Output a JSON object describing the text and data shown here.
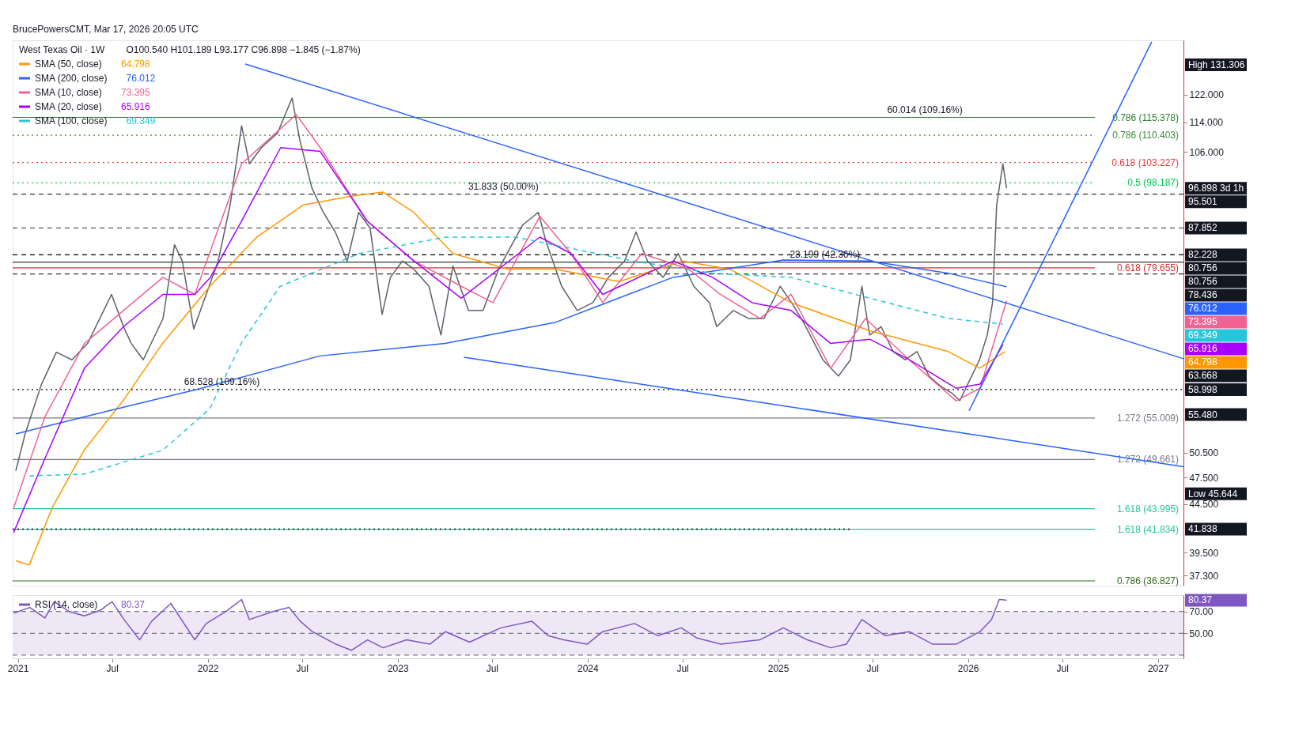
{
  "chart_data": [
    {
      "type": "line",
      "title": "West Texas Oil · 1W",
      "subtitle": "O100.540 H101.189 L93.177 C96.898 −1.845 (−1.87%)",
      "log": "y",
      "legend": "top left",
      "tick_labels": "y",
      "xlim": [
        "2020-12-22",
        "2027-02-19"
      ],
      "xticks": [
        {
          "value": "2021-01-01",
          "label": "2021"
        },
        {
          "value": "2021-07-01",
          "label": "Jul"
        },
        {
          "value": "2022-01-01",
          "label": "2022"
        },
        {
          "value": "2022-07-01",
          "label": "Jul"
        },
        {
          "value": "2023-01-01",
          "label": "2023"
        },
        {
          "value": "2023-07-01",
          "label": "Jul"
        },
        {
          "value": "2024-01-01",
          "label": "2024"
        },
        {
          "value": "2024-07-01",
          "label": "Jul"
        },
        {
          "value": "2025-01-01",
          "label": "2025"
        },
        {
          "value": "2025-07-01",
          "label": "Jul"
        },
        {
          "value": "2026-01-01",
          "label": "2026"
        },
        {
          "value": "2026-07-01",
          "label": "Jul"
        },
        {
          "value": "2027-01-01",
          "label": "2027"
        }
      ],
      "ylim": [
        36.4,
        139.5
      ],
      "yticks": [
        {
          "value": 122,
          "label": "122.000"
        },
        {
          "value": 114,
          "label": "114.000"
        },
        {
          "value": 106,
          "label": "106.000"
        },
        {
          "value": 50.5,
          "label": "50.500"
        },
        {
          "value": 47.5,
          "label": "47.500"
        },
        {
          "value": 44.5,
          "label": "44.500"
        },
        {
          "value": 39.5,
          "label": "39.500"
        },
        {
          "value": 37.3,
          "label": "37.300"
        }
      ],
      "series": [
        {
          "color": "#5d606b",
          "x": [
            "2020-12-28",
            "2021-01-15",
            "2021-02-15",
            "2021-03-16",
            "2021-04-15",
            "2021-05-15",
            "2021-06-30",
            "2021-07-23",
            "2021-08-07",
            "2021-08-30",
            "2021-10-07",
            "2021-10-29",
            "2021-11-13",
            "2021-12-05",
            "2021-12-29",
            "2022-01-21",
            "2022-02-13",
            "2022-03-07",
            "2022-03-22",
            "2022-04-14",
            "2022-05-15",
            "2022-06-12",
            "2022-06-27",
            "2022-07-20",
            "2022-08-11",
            "2022-09-03",
            "2022-09-26",
            "2022-10-18",
            "2022-11-09",
            "2022-12-02",
            "2022-12-18",
            "2023-01-10",
            "2023-02-01",
            "2023-03-02",
            "2023-03-25",
            "2023-04-17",
            "2023-05-17",
            "2023-06-14",
            "2023-07-14",
            "2023-08-29",
            "2023-09-28",
            "2023-10-13",
            "2023-11-12",
            "2023-12-12",
            "2024-01-11",
            "2024-02-10",
            "2024-03-12",
            "2024-04-03",
            "2024-04-25",
            "2024-05-25",
            "2024-06-23",
            "2024-07-23",
            "2024-08-22",
            "2024-09-05",
            "2024-10-07",
            "2024-11-05",
            "2024-12-05",
            "2025-01-05",
            "2025-01-27",
            "2025-02-19",
            "2025-03-28",
            "2025-04-27",
            "2025-05-20",
            "2025-06-11",
            "2025-06-26",
            "2025-07-18",
            "2025-08-10",
            "2025-09-02",
            "2025-09-25",
            "2025-10-18",
            "2025-11-09",
            "2025-12-01",
            "2025-12-16",
            "2026-01-08",
            "2026-01-23",
            "2026-02-07",
            "2026-02-17",
            "2026-02-25",
            "2026-03-09",
            "2026-03-16"
          ],
          "values": [
            48.3,
            52.9,
            59.7,
            64.7,
            63.5,
            66.1,
            74.6,
            68.9,
            66.1,
            63.5,
            70.3,
            84.3,
            81.0,
            68.5,
            74.6,
            81.0,
            93.0,
            113.0,
            102.9,
            107.1,
            111.0,
            121.0,
            109.0,
            97.0,
            91.3,
            87.0,
            81.0,
            91.3,
            87.8,
            71.0,
            77.8,
            81.0,
            79.4,
            76.1,
            67.5,
            80.0,
            71.7,
            71.7,
            79.4,
            88.5,
            91.3,
            85.0,
            76.1,
            71.7,
            73.1,
            77.8,
            81.0,
            87.0,
            81.0,
            77.8,
            82.5,
            76.1,
            73.1,
            68.9,
            71.7,
            70.3,
            70.3,
            76.1,
            73.1,
            69.6,
            63.5,
            61.0,
            63.5,
            76.1,
            67.5,
            68.9,
            64.8,
            63.5,
            64.8,
            61.0,
            59.5,
            58.5,
            57.4,
            61.0,
            63.5,
            67.5,
            73.1,
            93.0,
            102.9,
            96.898
          ]
        },
        {
          "name": "SMA (50, close)",
          "color": "#ff9800",
          "x": [
            "2020-12-28",
            "2021-01-23",
            "2021-03-08",
            "2021-05-08",
            "2021-07-22",
            "2021-10-06",
            "2022-01-05",
            "2022-04-05",
            "2022-07-04",
            "2022-10-03",
            "2022-12-03",
            "2023-02-01",
            "2023-04-17",
            "2023-08-01",
            "2023-10-30",
            "2024-03-01",
            "2024-07-01",
            "2024-09-30",
            "2025-01-26",
            "2025-06-26",
            "2025-11-24",
            "2026-01-23",
            "2026-03-13"
          ],
          "values": [
            38.7,
            38.3,
            44.1,
            50.8,
            57.4,
            66.1,
            76.1,
            85.9,
            93.0,
            95.0,
            96.0,
            91.3,
            82.5,
            79.4,
            79.4,
            77.0,
            81.0,
            79.4,
            73.1,
            68.2,
            64.8,
            62.2,
            64.798
          ]
        },
        {
          "name": "SMA (200, close)",
          "color": "#2962ff",
          "x": [
            "2020-12-28",
            "2021-06-08",
            "2021-12-20",
            "2022-08-04",
            "2023-04-02",
            "2023-10-30",
            "2024-06-13",
            "2025-01-11",
            "2025-06-26",
            "2025-11-24",
            "2026-03-16"
          ],
          "values": [
            52.9,
            55.7,
            59.2,
            64.1,
            66.1,
            69.6,
            77.8,
            81.2,
            81.0,
            78.6,
            76.012
          ]
        },
        {
          "name": "SMA (10, close)",
          "color": "#f06292",
          "x": [
            "2020-12-24",
            "2021-02-22",
            "2021-05-09",
            "2021-07-23",
            "2021-10-07",
            "2021-12-07",
            "2022-03-07",
            "2022-06-20",
            "2022-08-05",
            "2022-11-03",
            "2023-02-01",
            "2023-05-03",
            "2023-07-03",
            "2023-10-01",
            "2023-11-30",
            "2024-01-30",
            "2024-04-14",
            "2024-07-13",
            "2024-09-12",
            "2024-11-27",
            "2025-01-26",
            "2025-04-12",
            "2025-06-18",
            "2025-09-10",
            "2025-12-09",
            "2026-01-24",
            "2026-03-16"
          ],
          "values": [
            44.1,
            55.2,
            66.1,
            71.7,
            77.8,
            74.6,
            102.9,
            116.2,
            107.1,
            89.4,
            81.0,
            76.1,
            73.1,
            90.4,
            82.5,
            73.1,
            82.5,
            79.4,
            74.6,
            70.3,
            74.6,
            62.2,
            70.3,
            63.5,
            57.4,
            59.2,
            73.395
          ]
        },
        {
          "name": "SMA (20, close)",
          "color": "#aa00ff",
          "x": [
            "2020-12-24",
            "2021-02-22",
            "2021-05-09",
            "2021-07-23",
            "2021-10-07",
            "2021-12-07",
            "2022-01-06",
            "2022-03-07",
            "2022-05-21",
            "2022-08-05",
            "2022-11-03",
            "2023-02-01",
            "2023-05-03",
            "2023-10-01",
            "2023-11-30",
            "2024-01-30",
            "2024-06-14",
            "2024-08-28",
            "2024-11-12",
            "2025-01-26",
            "2025-04-12",
            "2025-06-26",
            "2025-09-10",
            "2025-12-09",
            "2026-01-24",
            "2026-03-09"
          ],
          "values": [
            41.5,
            49.8,
            62.2,
            68.9,
            74.6,
            74.6,
            77.8,
            89.4,
            107.1,
            106.1,
            89.4,
            81.0,
            73.9,
            85.9,
            82.5,
            74.6,
            81.0,
            77.8,
            73.1,
            71.7,
            66.1,
            66.8,
            63.5,
            59.2,
            59.8,
            65.916
          ]
        },
        {
          "name": "SMA (100, close)",
          "color": "#26c6da",
          "line_style": "dashed",
          "x": [
            "2021-01-23",
            "2021-05-08",
            "2021-10-06",
            "2022-01-05",
            "2022-03-06",
            "2022-05-20",
            "2022-10-19",
            "2023-04-02",
            "2023-08-16",
            "2024-03-28",
            "2024-08-27",
            "2025-01-26",
            "2025-06-26",
            "2025-11-24",
            "2026-03-09"
          ],
          "values": [
            47.7,
            47.9,
            50.8,
            56.3,
            66.1,
            76.1,
            82.5,
            85.9,
            85.9,
            81.0,
            78.6,
            77.8,
            73.9,
            70.3,
            69.349
          ]
        },
        {
          "color": "#000000",
          "line_style": "dotted",
          "x": [
            "2020-12-22",
            "2025-05-20"
          ],
          "values": [
            41.838,
            41.838
          ]
        },
        {
          "color": "#2962ff",
          "x": [
            "2022-03-14",
            "2027-02-19"
          ],
          "values": [
            131.6,
            63.668
          ]
        },
        {
          "color": "#2962ff",
          "x": [
            "2023-05-08",
            "2027-02-19"
          ],
          "values": [
            63.9,
            48.8
          ]
        },
        {
          "color": "#2962ff",
          "x": [
            "2026-01-03",
            "2026-12-20"
          ],
          "values": [
            56.0,
            139.0
          ]
        }
      ],
      "ref_lines": [
        {
          "axis": "y",
          "value": 115.378,
          "label": "0.786 (115.378)",
          "color": "#2e7d32",
          "line_style": "solid"
        },
        {
          "axis": "y",
          "value": 110.403,
          "label": "0.786 (110.403)",
          "color": "#388e3c",
          "line_style": "dotted"
        },
        {
          "axis": "y",
          "value": 103.227,
          "label": "0.618 (103.227)",
          "color": "#e53935",
          "line_style": "dotted"
        },
        {
          "axis": "y",
          "value": 98.187,
          "label": "0.5 (98.187)",
          "color": "#00c853",
          "line_style": "dotted"
        },
        {
          "axis": "y",
          "value": 95.501,
          "color": "#333333",
          "line_style": "dashed"
        },
        {
          "axis": "y",
          "value": 87.852,
          "color": "#333333",
          "line_style": "dashed"
        },
        {
          "axis": "y",
          "value": 82.228,
          "color": "#000000",
          "line_style": "dashed"
        },
        {
          "axis": "y",
          "value": 80.756,
          "color": "#000000",
          "line_style": "solid"
        },
        {
          "axis": "y",
          "value": 79.655,
          "label": "0.618 (79.655)",
          "color": "#d32f2f",
          "line_style": "solid"
        },
        {
          "axis": "y",
          "value": 78.436,
          "color": "#333333",
          "line_style": "dashed"
        },
        {
          "axis": "y",
          "value": 58.998,
          "color": "#000000",
          "line_style": "dotted"
        },
        {
          "axis": "y",
          "value": 55.009,
          "label": "1.272 (55.009)",
          "color": "#787b86",
          "line_style": "solid"
        },
        {
          "axis": "y",
          "value": 49.661,
          "label": "1.272 (49.661)",
          "color": "#787b86",
          "line_style": "solid"
        },
        {
          "axis": "y",
          "value": 43.995,
          "label": "1.618 (43.995)",
          "color": "#26c6a0",
          "line_style": "solid"
        },
        {
          "axis": "y",
          "value": 41.834,
          "label": "1.618 (41.834)",
          "color": "#26c6a0",
          "line_style": "solid"
        },
        {
          "axis": "y",
          "value": 36.827,
          "label": "0.786 (36.827)",
          "color": "#33691e",
          "line_style": "solid"
        }
      ],
      "annotations": [
        "BrucePowersCMT, Mar 17, 2026 20:05 UTC",
        "High 131.306",
        "55.480",
        "Low 45.644",
        {
          "text": "68.528 (109.16%)",
          "x": "2022-01-28",
          "y": 58.998
        },
        {
          "text": "31.833 (50.00%)",
          "x": "2023-07-23",
          "y": 95.501
        },
        {
          "text": "23.199 (42.36%)",
          "x": "2025-04-01",
          "y": 80.756
        },
        {
          "text": "60.014 (109.16%)",
          "x": "2025-10-10",
          "y": 115.378
        },
        "96.898 3d 1h",
        "95.501",
        "87.852",
        "82.228",
        "80.756",
        "80.756",
        "78.436",
        "76.012",
        "73.395",
        "69.349",
        "65.916",
        "64.798",
        "63.668",
        "58.998",
        "41.838"
      ]
    },
    {
      "type": "line",
      "legend": "top left",
      "xlim": [
        "2020-12-22",
        "2027-02-19"
      ],
      "xticks": [
        {
          "value": "2021-01-01",
          "label": "2021"
        },
        {
          "value": "2021-07-01",
          "label": "Jul"
        },
        {
          "value": "2022-01-01",
          "label": "2022"
        },
        {
          "value": "2022-07-01",
          "label": "Jul"
        },
        {
          "value": "2023-01-01",
          "label": "2023"
        },
        {
          "value": "2023-07-01",
          "label": "Jul"
        },
        {
          "value": "2024-01-01",
          "label": "2024"
        },
        {
          "value": "2024-07-01",
          "label": "Jul"
        },
        {
          "value": "2025-01-01",
          "label": "2025"
        },
        {
          "value": "2025-07-01",
          "label": "Jul"
        },
        {
          "value": "2026-01-01",
          "label": "2026"
        },
        {
          "value": "2026-07-01",
          "label": "Jul"
        },
        {
          "value": "2027-01-01",
          "label": "2027"
        }
      ],
      "ylim": [
        27,
        85
      ],
      "yticks": [
        {
          "value": 70,
          "label": "70.00"
        },
        {
          "value": 50,
          "label": "50.00"
        }
      ],
      "series": [
        {
          "name": "RSI (14, close)",
          "color": "#7e57c2",
          "x": [
            "2020-12-24",
            "2021-01-24",
            "2021-02-22",
            "2021-03-12",
            "2021-04-09",
            "2021-05-09",
            "2021-06-08",
            "2021-07-01",
            "2021-07-24",
            "2021-08-23",
            "2021-09-15",
            "2021-10-22",
            "2021-12-07",
            "2021-12-29",
            "2022-02-05",
            "2022-03-07",
            "2022-03-22",
            "2022-05-06",
            "2022-06-06",
            "2022-06-28",
            "2022-07-21",
            "2022-09-04",
            "2022-10-04",
            "2022-11-04",
            "2022-12-04",
            "2023-01-18",
            "2023-03-04",
            "2023-04-03",
            "2023-05-19",
            "2023-07-18",
            "2023-09-16",
            "2023-10-17",
            "2023-11-16",
            "2023-12-31",
            "2024-01-30",
            "2024-03-31",
            "2024-05-15",
            "2024-06-29",
            "2024-07-29",
            "2024-09-13",
            "2024-11-27",
            "2025-01-11",
            "2025-02-26",
            "2025-04-12",
            "2025-05-12",
            "2025-06-11",
            "2025-07-26",
            "2025-09-10",
            "2025-10-25",
            "2025-12-09",
            "2026-01-24",
            "2026-02-15",
            "2026-03-02",
            "2026-03-16"
          ],
          "values": [
            68.5,
            73.7,
            64,
            79,
            70,
            66,
            71,
            79,
            62.6,
            44,
            61,
            77.4,
            44,
            59,
            70,
            81,
            62.6,
            70,
            73.7,
            61,
            51.5,
            40,
            34.4,
            44,
            36.7,
            44,
            40,
            51.5,
            41.9,
            55,
            61,
            47.8,
            44,
            40,
            51.5,
            59,
            47.8,
            55,
            45.6,
            40,
            44,
            55,
            44,
            36.7,
            40,
            62.6,
            47.8,
            51.5,
            40,
            40,
            51.5,
            62.6,
            81,
            80.37
          ]
        }
      ],
      "ref_lines": [
        {
          "axis": "y",
          "value": 70,
          "color": "#787b86",
          "line_style": "dashed"
        },
        {
          "axis": "y",
          "value": 50,
          "color": "#787b86",
          "line_style": "dashed"
        },
        {
          "axis": "y",
          "value": 30,
          "color": "#787b86",
          "line_style": "dashed"
        }
      ],
      "bands": [
        {
          "axis": "y",
          "from": 30,
          "to": 70,
          "color": "#ede7f6"
        }
      ],
      "annotations": [
        "80.37"
      ]
    }
  ]
}
